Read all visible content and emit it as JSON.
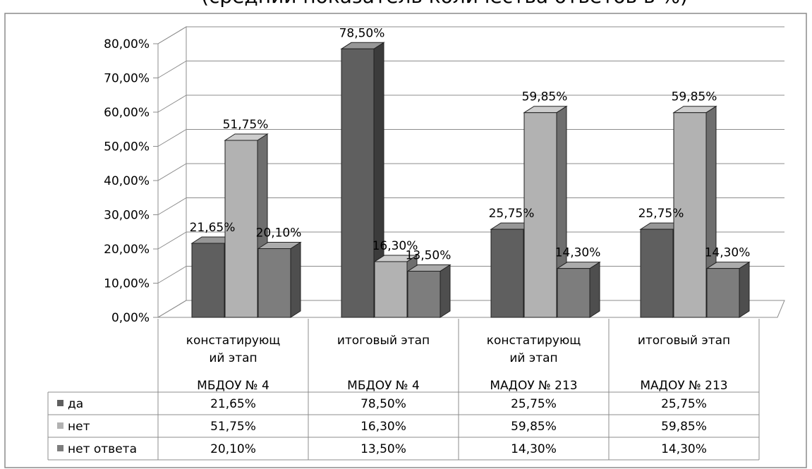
{
  "chart_data": {
    "type": "bar",
    "title": "(средний показатель количества ответов в %)",
    "categories": [
      [
        "констатирующ",
        "ий этап",
        "МБДОУ № 4"
      ],
      [
        "итоговый этап",
        "",
        "МБДОУ № 4"
      ],
      [
        "констатирующ",
        "ий этап",
        "МАДОУ № 213"
      ],
      [
        "итоговый этап",
        "",
        "МАДОУ № 213"
      ]
    ],
    "series": [
      {
        "name": "да",
        "values": [
          21.65,
          78.5,
          25.75,
          25.75
        ],
        "labels": [
          "21,65%",
          "78,50%",
          "25,75%",
          "25,75%"
        ],
        "color": "#5f5f5f"
      },
      {
        "name": "нет",
        "values": [
          51.75,
          16.3,
          59.85,
          59.85
        ],
        "labels": [
          "51,75%",
          "16,30%",
          "59,85%",
          "59,85%"
        ],
        "color": "#b2b2b2"
      },
      {
        "name": "нет ответа",
        "values": [
          20.1,
          13.5,
          14.3,
          14.3
        ],
        "labels": [
          "20,10%",
          "13,50%",
          "14,30%",
          "14,30%"
        ],
        "color": "#7d7d7d"
      }
    ],
    "ylim": [
      0,
      80
    ],
    "yticks": [
      "0,00%",
      "10,00%",
      "20,00%",
      "30,00%",
      "40,00%",
      "50,00%",
      "60,00%",
      "70,00%",
      "80,00%"
    ],
    "grid": true,
    "bar_style": "3d",
    "legend": "data-table"
  }
}
